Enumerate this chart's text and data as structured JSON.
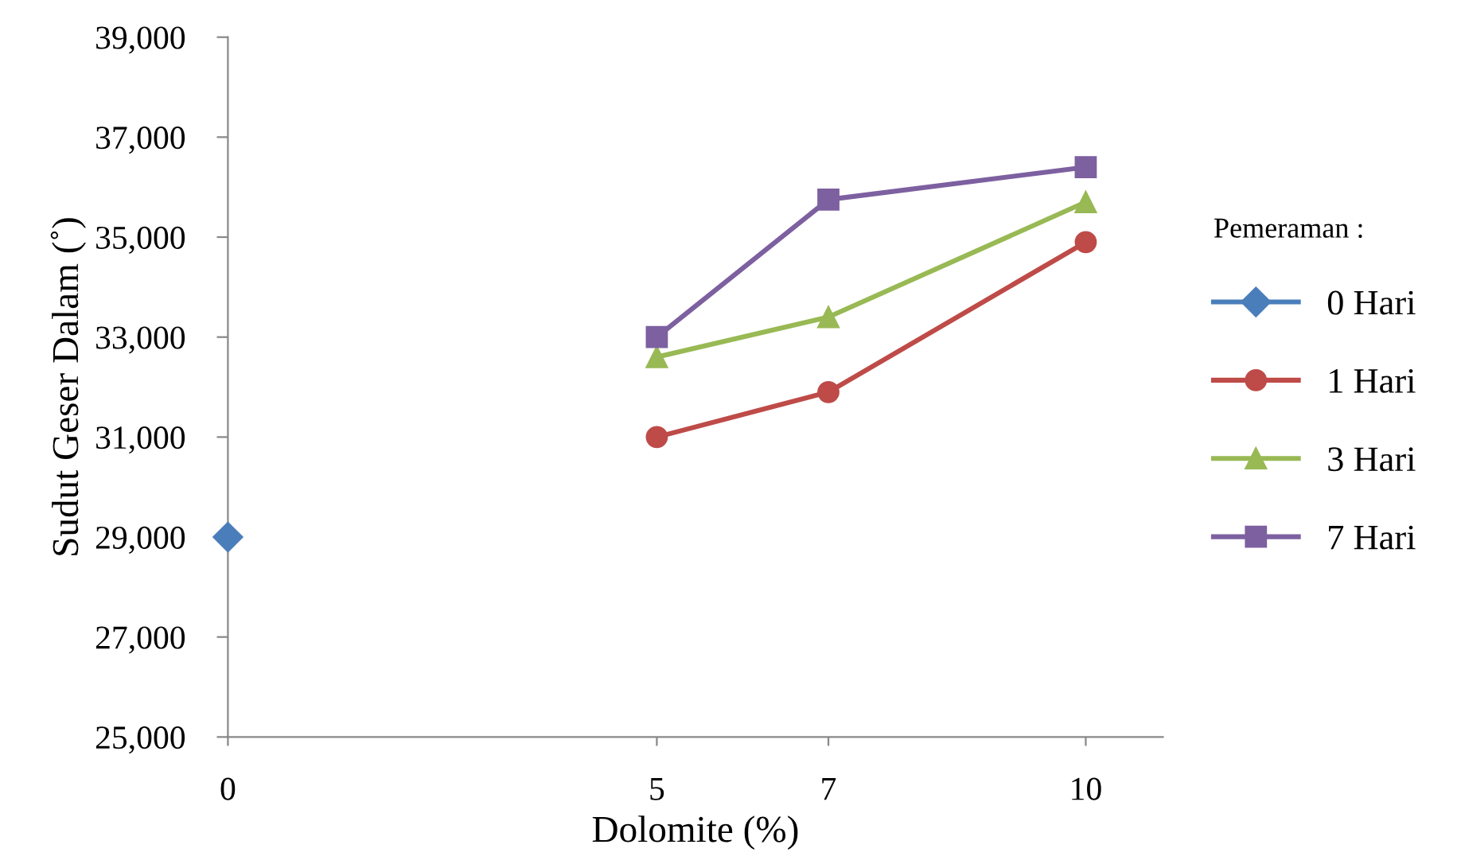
{
  "chart_data": {
    "type": "line",
    "xlabel": "Dolomite (%)",
    "ylabel": "Sudut Geser Dalam (˚)",
    "legend_title": "Pemeraman :",
    "legend": "right",
    "xlim": [
      0,
      10.9
    ],
    "xticks": [
      0,
      5,
      7,
      10
    ],
    "ylim": [
      25000,
      39000
    ],
    "yticks": [
      {
        "value": 25000,
        "label": "25,000"
      },
      {
        "value": 27000,
        "label": "27,000"
      },
      {
        "value": 29000,
        "label": "29,000"
      },
      {
        "value": 31000,
        "label": "31,000"
      },
      {
        "value": 33000,
        "label": "33,000"
      },
      {
        "value": 35000,
        "label": "35,000"
      },
      {
        "value": 37000,
        "label": "37,000"
      },
      {
        "value": 39000,
        "label": "39,000"
      }
    ],
    "grid": false,
    "series": [
      {
        "name": "0 Hari",
        "color": "#4a7ebb",
        "marker": "diamond",
        "x": [
          0
        ],
        "values": [
          29000
        ]
      },
      {
        "name": "1 Hari",
        "color": "#be4b48",
        "marker": "circle",
        "x": [
          5,
          7,
          10
        ],
        "values": [
          31000,
          31900,
          34900
        ]
      },
      {
        "name": "3 Hari",
        "color": "#98b954",
        "marker": "triangle",
        "x": [
          5,
          7,
          10
        ],
        "values": [
          32600,
          33400,
          35700
        ]
      },
      {
        "name": "7 Hari",
        "color": "#7d60a0",
        "marker": "square",
        "x": [
          5,
          7,
          10
        ],
        "values": [
          33000,
          35750,
          36400
        ]
      }
    ]
  }
}
